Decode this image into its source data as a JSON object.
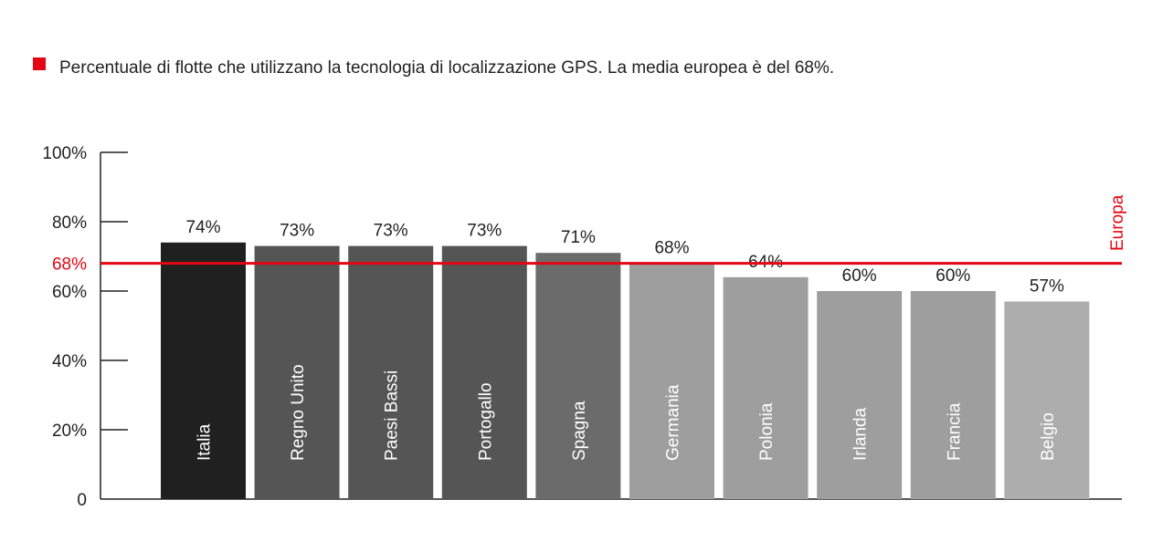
{
  "legend": {
    "text": "Percentuale di flotte che utilizzano la tecnologia di localizzazione GPS. La media europea è del 68%.",
    "color": "#e30613"
  },
  "chart_data": {
    "type": "bar",
    "categories": [
      "Italia",
      "Regno Unito",
      "Paesi Bassi",
      "Portogallo",
      "Spagna",
      "Germania",
      "Polonia",
      "Irlanda",
      "Francia",
      "Belgio"
    ],
    "values": [
      74,
      73,
      73,
      73,
      71,
      68,
      64,
      60,
      60,
      57
    ],
    "value_labels": [
      "74%",
      "73%",
      "73%",
      "73%",
      "71%",
      "68%",
      "64%",
      "60%",
      "60%",
      "57%"
    ],
    "bar_colors": [
      "#202020",
      "#555555",
      "#555555",
      "#555555",
      "#6b6b6b",
      "#9e9e9e",
      "#9e9e9e",
      "#9e9e9e",
      "#9e9e9e",
      "#adadad"
    ],
    "ylim": [
      0,
      100
    ],
    "yticks": [
      {
        "value": 0,
        "label": "0"
      },
      {
        "value": 20,
        "label": "20%"
      },
      {
        "value": 40,
        "label": "40%"
      },
      {
        "value": 60,
        "label": "60%"
      },
      {
        "value": 80,
        "label": "80%"
      },
      {
        "value": 100,
        "label": "100%"
      }
    ],
    "reference": {
      "value": 68,
      "label": "68%",
      "name": "Europa",
      "color": "#e30613"
    },
    "grid": false,
    "xlabel": "",
    "ylabel": ""
  }
}
